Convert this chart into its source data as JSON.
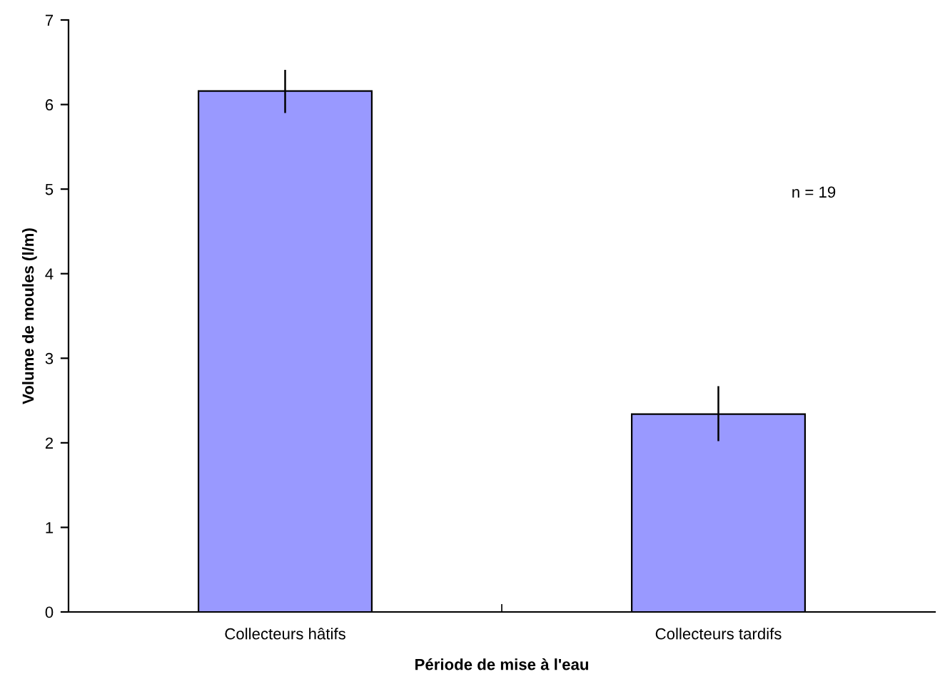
{
  "chart_data": {
    "type": "bar",
    "xlabel": "Période de mise à l'eau",
    "ylabel": "Volume de moules (l/m)",
    "categories": [
      "Collecteurs hâtifs",
      "Collecteurs tardifs"
    ],
    "values": [
      6.16,
      2.34
    ],
    "color": "#9999ff",
    "errors": [
      [
        5.9,
        6.41
      ],
      [
        2.02,
        2.67
      ]
    ],
    "ylim": [
      0,
      7
    ],
    "yticks": [
      0,
      1,
      2,
      3,
      4,
      5,
      6,
      7
    ],
    "grid": false,
    "annotations": [
      "n = 19"
    ]
  }
}
